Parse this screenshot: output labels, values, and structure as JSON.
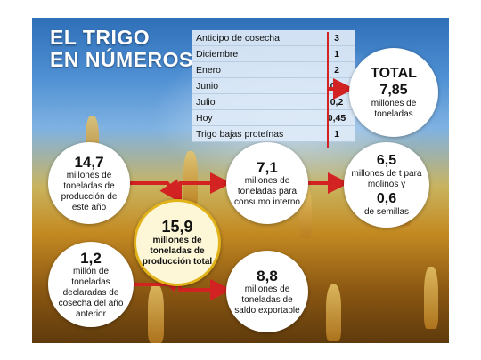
{
  "headline": {
    "line1": "EL TRIGO",
    "line2": "EN NÚMEROS"
  },
  "table": {
    "rows": [
      {
        "label": "Anticipo de cosecha",
        "value": "3"
      },
      {
        "label": "Diciembre",
        "value": "1"
      },
      {
        "label": "Enero",
        "value": "2"
      },
      {
        "label": "Junio",
        "value": "0,2"
      },
      {
        "label": "Julio",
        "value": "0,2"
      },
      {
        "label": "Hoy",
        "value": "0,45"
      },
      {
        "label": "Trigo bajas proteínas",
        "value": "1"
      }
    ]
  },
  "total": {
    "heading": "TOTAL",
    "value": "7,85",
    "unit": "millones de toneladas"
  },
  "produccion": {
    "value": "14,7",
    "text": "millones de toneladas de producción de este año"
  },
  "anterior": {
    "value": "1,2",
    "text": "millón de toneladas declaradas de cosecha del año anterior"
  },
  "total_produccion": {
    "value": "15,9",
    "text": "millones de toneladas de producción total"
  },
  "consumo": {
    "value": "7,1",
    "text": "millones de toneladas para consumo interno"
  },
  "exportable": {
    "value": "8,8",
    "text": "millones de toneladas de saldo exportable"
  },
  "molinos": {
    "value1": "6,5",
    "text1": "millones de t para molinos y",
    "value2": "0,6",
    "text2": "de semillas"
  },
  "colors": {
    "arrow": "#d32222",
    "accent_ring": "#e1b21a",
    "table_bg": "#deeaf6"
  }
}
